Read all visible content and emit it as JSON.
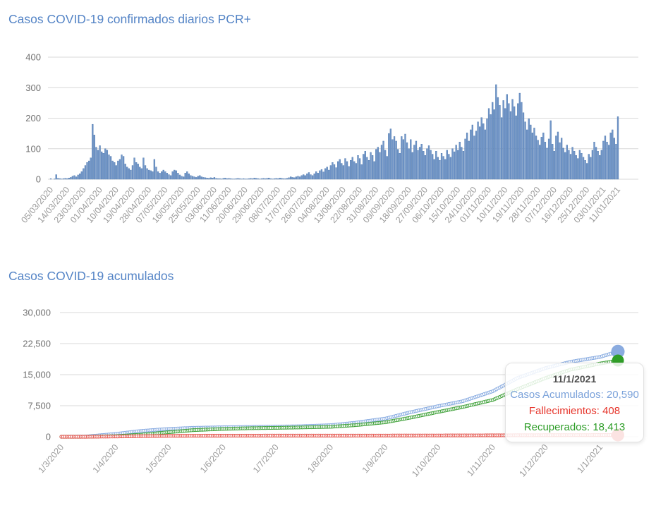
{
  "chart_data": [
    {
      "type": "bar",
      "title": "Casos COVID-19 confirmados diarios PCR+",
      "ylabel": "",
      "xlabel": "",
      "ylim": [
        0,
        400
      ],
      "y_ticks": [
        "400",
        "300",
        "200",
        "100",
        "0"
      ],
      "grid": true,
      "bar_color": "#7296c8",
      "bar_border_color": "#4a76ad",
      "start_date": "05/03/2020",
      "x_tick_labels": [
        "05/03/2020",
        "14/03/2020",
        "23/03/2020",
        "01/04/2020",
        "10/04/2020",
        "19/04/2020",
        "28/04/2020",
        "07/05/2020",
        "16/05/2020",
        "25/05/2020",
        "03/06/2020",
        "11/06/2020",
        "20/06/2020",
        "29/06/2020",
        "08/07/2020",
        "17/07/2020",
        "26/07/2020",
        "04/08/2020",
        "13/08/2020",
        "22/08/2020",
        "31/08/2020",
        "09/09/2020",
        "18/09/2020",
        "27/09/2020",
        "06/10/2020",
        "15/10/2020",
        "24/10/2020",
        "01/11/2020",
        "10/11/2020",
        "19/11/2020",
        "28/11/2020",
        "07/12/2020",
        "16/12/2020",
        "25/12/2020",
        "03/01/2021",
        "11/01/2021"
      ],
      "values": [
        2,
        0,
        1,
        15,
        3,
        2,
        1,
        2,
        3,
        2,
        4,
        6,
        10,
        12,
        8,
        14,
        18,
        25,
        35,
        45,
        55,
        60,
        70,
        180,
        145,
        105,
        95,
        110,
        90,
        85,
        100,
        95,
        80,
        75,
        60,
        55,
        45,
        60,
        65,
        80,
        75,
        50,
        40,
        35,
        30,
        45,
        70,
        55,
        50,
        40,
        35,
        70,
        45,
        35,
        30,
        28,
        25,
        65,
        40,
        25,
        20,
        25,
        30,
        25,
        20,
        15,
        12,
        25,
        30,
        28,
        20,
        14,
        10,
        8,
        20,
        25,
        18,
        12,
        10,
        8,
        6,
        10,
        12,
        8,
        6,
        5,
        4,
        3,
        5,
        4,
        6,
        3,
        2,
        2,
        1,
        3,
        4,
        2,
        3,
        2,
        1,
        1,
        2,
        3,
        2,
        1,
        2,
        1,
        1,
        2,
        3,
        2,
        4,
        3,
        2,
        1,
        2,
        3,
        2,
        3,
        4,
        2,
        1,
        2,
        3,
        2,
        4,
        3,
        2,
        2,
        3,
        5,
        8,
        6,
        5,
        8,
        10,
        8,
        12,
        15,
        12,
        18,
        22,
        15,
        12,
        18,
        25,
        20,
        28,
        32,
        24,
        35,
        40,
        30,
        45,
        55,
        48,
        38,
        58,
        65,
        52,
        45,
        68,
        58,
        42,
        62,
        72,
        58,
        52,
        78,
        68,
        48,
        82,
        92,
        72,
        62,
        88,
        78,
        58,
        98,
        105,
        88,
        112,
        125,
        95,
        75,
        150,
        165,
        130,
        140,
        125,
        98,
        85,
        140,
        130,
        148,
        120,
        100,
        130,
        88,
        112,
        125,
        95,
        105,
        115,
        92,
        78,
        100,
        110,
        95,
        82,
        65,
        92,
        72,
        62,
        85,
        75,
        65,
        95,
        82,
        72,
        100,
        90,
        112,
        95,
        122,
        105,
        92,
        132,
        152,
        125,
        162,
        178,
        142,
        158,
        188,
        172,
        202,
        182,
        162,
        198,
        232,
        212,
        252,
        228,
        310,
        268,
        242,
        202,
        258,
        232,
        278,
        248,
        222,
        262,
        238,
        208,
        248,
        282,
        252,
        218,
        188,
        162,
        198,
        178,
        152,
        168,
        142,
        128,
        112,
        138,
        152,
        122,
        102,
        132,
        192,
        115,
        92,
        142,
        155,
        120,
        135,
        102,
        88,
        112,
        95,
        82,
        105,
        92,
        78,
        68,
        95,
        85,
        72,
        62,
        52,
        82,
        72,
        95,
        122,
        105,
        92,
        78,
        95,
        125,
        142,
        122,
        112,
        152,
        162,
        135,
        115,
        205
      ]
    },
    {
      "type": "line",
      "title": "Casos COVID-19 acumulados",
      "ylabel": "",
      "xlabel": "",
      "ylim": [
        0,
        30000
      ],
      "y_ticks": [
        "30,000",
        "22,500",
        "15,000",
        "7,500",
        "0"
      ],
      "grid": true,
      "legend_position": "none",
      "marker_style": "open-circle-daily",
      "x_tick_labels": [
        "1/3/2020",
        "1/4/2020",
        "1/5/2020",
        "1/6/2020",
        "1/7/2020",
        "1/8/2020",
        "1/9/2020",
        "1/10/2020",
        "1/11/2020",
        "1/12/2020",
        "1/1/2021"
      ],
      "x_tick_days": [
        0,
        31,
        61,
        92,
        122,
        153,
        184,
        214,
        245,
        275,
        306
      ],
      "series": [
        {
          "name": "Casos Acumulados",
          "color": "#85a9e0",
          "marker_color": "#8aabdf",
          "end_value": 20590,
          "anchor_days": [
            0,
            14,
            31,
            45,
            61,
            75,
            92,
            106,
            122,
            136,
            153,
            167,
            184,
            198,
            214,
            228,
            245,
            259,
            275,
            289,
            306,
            316
          ],
          "anchor_values": [
            0,
            60,
            700,
            1400,
            1900,
            2150,
            2300,
            2370,
            2450,
            2550,
            2800,
            3400,
            4400,
            5900,
            7400,
            8600,
            11000,
            14200,
            16600,
            18100,
            19300,
            20590
          ]
        },
        {
          "name": "Recuperados",
          "color": "#3da037",
          "marker_color": "#2f9e27",
          "end_value": 18413,
          "anchor_days": [
            0,
            14,
            31,
            45,
            61,
            75,
            92,
            106,
            122,
            136,
            153,
            167,
            184,
            198,
            214,
            228,
            245,
            259,
            275,
            289,
            306,
            316
          ],
          "anchor_values": [
            0,
            5,
            150,
            500,
            1100,
            1600,
            1900,
            2050,
            2150,
            2250,
            2400,
            2800,
            3500,
            4600,
            6000,
            7200,
            8900,
            11500,
            14200,
            16200,
            17700,
            18413
          ]
        },
        {
          "name": "Fallecimientos",
          "color": "#e4554d",
          "marker_color": "#e4554d",
          "end_value": 408,
          "anchor_days": [
            0,
            14,
            31,
            45,
            61,
            75,
            92,
            106,
            122,
            136,
            153,
            167,
            184,
            198,
            214,
            228,
            245,
            259,
            275,
            289,
            306,
            316
          ],
          "anchor_values": [
            0,
            2,
            60,
            150,
            220,
            245,
            260,
            268,
            272,
            275,
            278,
            283,
            290,
            300,
            310,
            322,
            340,
            358,
            380,
            392,
            400,
            408
          ]
        }
      ],
      "tooltip": {
        "date": "11/1/2021",
        "date_color": "#4f4f4f",
        "casos": "Casos Acumulados: 20,590",
        "casos_color": "#7ba2da",
        "fallecimientos": "Fallecimientos: 408",
        "fallecimientos_color": "#e63329",
        "recuperados": "Recuperados: 18,413",
        "recuperados_color": "#2d9d27"
      }
    }
  ],
  "layout_colors": {
    "gridline": "#d8d8d8",
    "title_blue": "#5484c6"
  }
}
